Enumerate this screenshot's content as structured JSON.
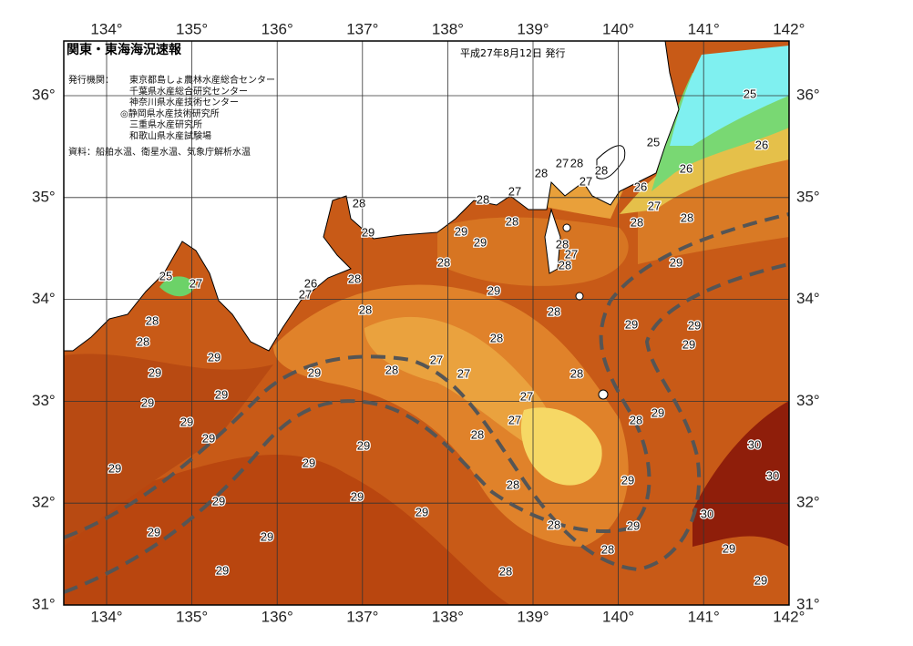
{
  "header": {
    "title": "関東・東海海況速報",
    "date": "平成27年8月12日 発行",
    "issuer_label": "発行機関：",
    "issuers": [
      "東京都島しょ農林水産総合センター",
      "千葉県水産総合研究センター",
      "神奈川県水産技術センター",
      "◎静岡県水産技術研究所",
      "三重県水産研究所",
      "和歌山県水産試験場"
    ],
    "source": "資料：船舶水温、衛星水温、気象庁解析水温"
  },
  "map": {
    "lon_labels": [
      "134°",
      "135°",
      "136°",
      "137°",
      "138°",
      "139°",
      "140°",
      "141°",
      "142°"
    ],
    "lat_labels": [
      "36°",
      "35°",
      "34°",
      "33°",
      "32°",
      "31°"
    ],
    "contour_labels": [
      25,
      25,
      26,
      26,
      26,
      27,
      28,
      28,
      29,
      27,
      28,
      28,
      28,
      27,
      28,
      27,
      28,
      29,
      29,
      28,
      29,
      28,
      27,
      28,
      28,
      28,
      26,
      27,
      25,
      27,
      29,
      28,
      28,
      28,
      28,
      28,
      29,
      29,
      29,
      29,
      29,
      29,
      28,
      27,
      27,
      28,
      29,
      29,
      27,
      29,
      27,
      29,
      28,
      28,
      29,
      29,
      29,
      29,
      30,
      30,
      29,
      28,
      29,
      29,
      29,
      30,
      29,
      29,
      28,
      29,
      28,
      29,
      29,
      28,
      29
    ]
  }
}
